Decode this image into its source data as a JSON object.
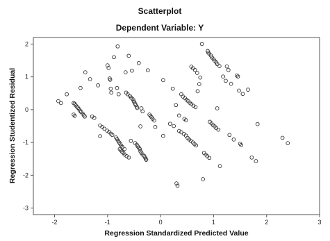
{
  "chart_data": {
    "type": "scatter",
    "title": "Scatterplot",
    "subtitle": "Dependent Variable: Y",
    "xlabel": "Regression Standardized Predicted Value",
    "ylabel": "Regression Studentized Residual",
    "xlim": [
      -2.4,
      3.0
    ],
    "ylim": [
      -3.2,
      2.2
    ],
    "xticks": [
      -2,
      -1,
      0,
      1,
      2,
      3
    ],
    "yticks": [
      -3,
      -2,
      -1,
      0,
      1,
      2
    ],
    "xtick_labels": [
      "-2",
      "-1",
      "0",
      "1",
      "2",
      "3"
    ],
    "ytick_labels": [
      "-3",
      "-2",
      "-1",
      "0",
      "1",
      "2"
    ],
    "grid": false,
    "marker": "open-circle",
    "colors": {
      "background": "#ffffff",
      "plot_border": "#555555",
      "marker": "#333333",
      "text": "#111111"
    },
    "points": [
      [
        -1.93,
        0.26
      ],
      [
        -1.88,
        0.2
      ],
      [
        -1.77,
        0.47
      ],
      [
        -1.64,
        0.2
      ],
      [
        -1.62,
        0.18
      ],
      [
        -1.6,
        0.13
      ],
      [
        -1.58,
        0.09
      ],
      [
        -1.56,
        0.06
      ],
      [
        -1.54,
        0.02
      ],
      [
        -1.52,
        -0.03
      ],
      [
        -1.5,
        -0.07
      ],
      [
        -1.47,
        -0.12
      ],
      [
        -1.45,
        -0.17
      ],
      [
        -1.43,
        -0.21
      ],
      [
        -1.64,
        -0.15
      ],
      [
        -1.62,
        -0.19
      ],
      [
        -1.51,
        0.66
      ],
      [
        -1.42,
        1.14
      ],
      [
        -1.33,
        0.93
      ],
      [
        -1.29,
        -0.21
      ],
      [
        -1.25,
        -0.25
      ],
      [
        -1.18,
        0.74
      ],
      [
        -1.14,
        -0.48
      ],
      [
        -1.1,
        -0.53
      ],
      [
        -1.06,
        -0.58
      ],
      [
        -1.01,
        -0.64
      ],
      [
        -0.97,
        -0.68
      ],
      [
        -0.94,
        -0.73
      ],
      [
        -0.91,
        -0.77
      ],
      [
        -1.14,
        -0.81
      ],
      [
        -1.0,
        1.35
      ],
      [
        -0.98,
        1.27
      ],
      [
        -0.96,
        0.95
      ],
      [
        -0.95,
        0.91
      ],
      [
        -0.94,
        0.64
      ],
      [
        -0.93,
        0.52
      ],
      [
        -0.88,
        1.6
      ],
      [
        -0.84,
        -0.85
      ],
      [
        -0.82,
        -0.9
      ],
      [
        -0.8,
        -0.95
      ],
      [
        -0.78,
        -1.0
      ],
      [
        -0.76,
        -1.05
      ],
      [
        -0.74,
        -1.1
      ],
      [
        -0.72,
        -1.14
      ],
      [
        -0.68,
        -1.2
      ],
      [
        -0.81,
        1.93
      ],
      [
        -0.82,
        0.66
      ],
      [
        -0.79,
        0.47
      ],
      [
        -0.77,
        -1.2
      ],
      [
        -0.75,
        -1.24
      ],
      [
        -0.73,
        -1.28
      ],
      [
        -0.7,
        -1.32
      ],
      [
        -0.68,
        -1.37
      ],
      [
        -0.64,
        -1.42
      ],
      [
        -0.6,
        -1.46
      ],
      [
        -0.66,
        1.14
      ],
      [
        -0.65,
        0.52
      ],
      [
        -0.62,
        0.47
      ],
      [
        -0.6,
        1.64
      ],
      [
        -0.58,
        0.42
      ],
      [
        -0.56,
        0.37
      ],
      [
        -0.54,
        1.19
      ],
      [
        -0.53,
        0.33
      ],
      [
        -0.51,
        0.28
      ],
      [
        -0.5,
        0.23
      ],
      [
        -0.48,
        0.18
      ],
      [
        -0.47,
        0.14
      ],
      [
        -0.45,
        0.09
      ],
      [
        -0.44,
        0.05
      ],
      [
        -0.41,
        1.42
      ],
      [
        -0.56,
        -0.95
      ],
      [
        -0.48,
        -1.02
      ],
      [
        -0.45,
        -1.07
      ],
      [
        -0.43,
        -1.12
      ],
      [
        -0.41,
        -1.16
      ],
      [
        -0.39,
        -1.2
      ],
      [
        -0.38,
        -1.27
      ],
      [
        -0.36,
        -1.32
      ],
      [
        -0.34,
        -1.37
      ],
      [
        -0.31,
        -1.41
      ],
      [
        -0.29,
        -1.46
      ],
      [
        -0.28,
        -1.5
      ],
      [
        -0.27,
        -1.53
      ],
      [
        -0.38,
        -0.51
      ],
      [
        -0.36,
        0.04
      ],
      [
        -0.34,
        -0.05
      ],
      [
        -0.24,
        1.2
      ],
      [
        -0.21,
        -0.15
      ],
      [
        -0.19,
        -0.19
      ],
      [
        -0.17,
        -0.23
      ],
      [
        -0.15,
        -0.28
      ],
      [
        -0.12,
        -0.33
      ],
      [
        -0.1,
        -0.53
      ],
      [
        0.05,
        0.9
      ],
      [
        0.05,
        -0.8
      ],
      [
        0.18,
        -0.43
      ],
      [
        0.23,
        0.64
      ],
      [
        0.25,
        -0.5
      ],
      [
        0.29,
        0.14
      ],
      [
        0.3,
        -2.25
      ],
      [
        0.32,
        -2.32
      ],
      [
        0.35,
        -0.65
      ],
      [
        0.39,
        -0.69
      ],
      [
        0.44,
        -0.74
      ],
      [
        0.48,
        -0.79
      ],
      [
        0.51,
        -0.86
      ],
      [
        0.54,
        -0.91
      ],
      [
        0.57,
        -0.95
      ],
      [
        0.61,
        -1.0
      ],
      [
        0.64,
        -1.05
      ],
      [
        0.67,
        -1.09
      ],
      [
        0.39,
        0.47
      ],
      [
        0.42,
        0.4
      ],
      [
        0.46,
        0.35
      ],
      [
        0.49,
        0.3
      ],
      [
        0.52,
        0.26
      ],
      [
        0.55,
        0.21
      ],
      [
        0.58,
        0.17
      ],
      [
        0.62,
        0.12
      ],
      [
        0.66,
        0.08
      ],
      [
        0.48,
        -0.32
      ],
      [
        0.45,
        -0.28
      ],
      [
        0.35,
        -0.18
      ],
      [
        0.58,
        1.31
      ],
      [
        0.61,
        1.26
      ],
      [
        0.65,
        1.21
      ],
      [
        0.69,
        1.12
      ],
      [
        0.7,
        0.56
      ],
      [
        0.73,
        0.78
      ],
      [
        0.75,
        0.98
      ],
      [
        0.78,
        2.0
      ],
      [
        0.82,
        -1.32
      ],
      [
        0.85,
        -1.37
      ],
      [
        0.88,
        -1.42
      ],
      [
        0.92,
        -1.47
      ],
      [
        0.8,
        -2.12
      ],
      [
        0.89,
        1.79
      ],
      [
        0.9,
        1.74
      ],
      [
        0.92,
        1.7
      ],
      [
        0.95,
        1.65
      ],
      [
        0.97,
        1.59
      ],
      [
        1.0,
        1.54
      ],
      [
        1.02,
        1.49
      ],
      [
        1.05,
        1.44
      ],
      [
        1.07,
        1.39
      ],
      [
        1.11,
        1.33
      ],
      [
        0.93,
        -0.37
      ],
      [
        0.96,
        -0.42
      ],
      [
        0.99,
        -0.47
      ],
      [
        1.02,
        -0.51
      ],
      [
        1.05,
        -0.56
      ],
      [
        1.09,
        -0.61
      ],
      [
        1.12,
        -1.72
      ],
      [
        1.07,
        0.04
      ],
      [
        1.18,
        1.01
      ],
      [
        1.23,
        0.88
      ],
      [
        1.25,
        1.32
      ],
      [
        1.28,
        1.21
      ],
      [
        1.3,
        -0.77
      ],
      [
        1.33,
        0.79
      ],
      [
        1.38,
        -0.91
      ],
      [
        1.44,
        1.04
      ],
      [
        1.46,
        1.01
      ],
      [
        1.48,
        0.58
      ],
      [
        1.5,
        -1.04
      ],
      [
        1.52,
        -1.08
      ],
      [
        1.55,
        0.48
      ],
      [
        1.65,
        0.61
      ],
      [
        1.72,
        -1.46
      ],
      [
        1.8,
        -1.57
      ],
      [
        1.83,
        -0.44
      ],
      [
        2.3,
        -0.86
      ],
      [
        2.4,
        -1.02
      ]
    ]
  }
}
